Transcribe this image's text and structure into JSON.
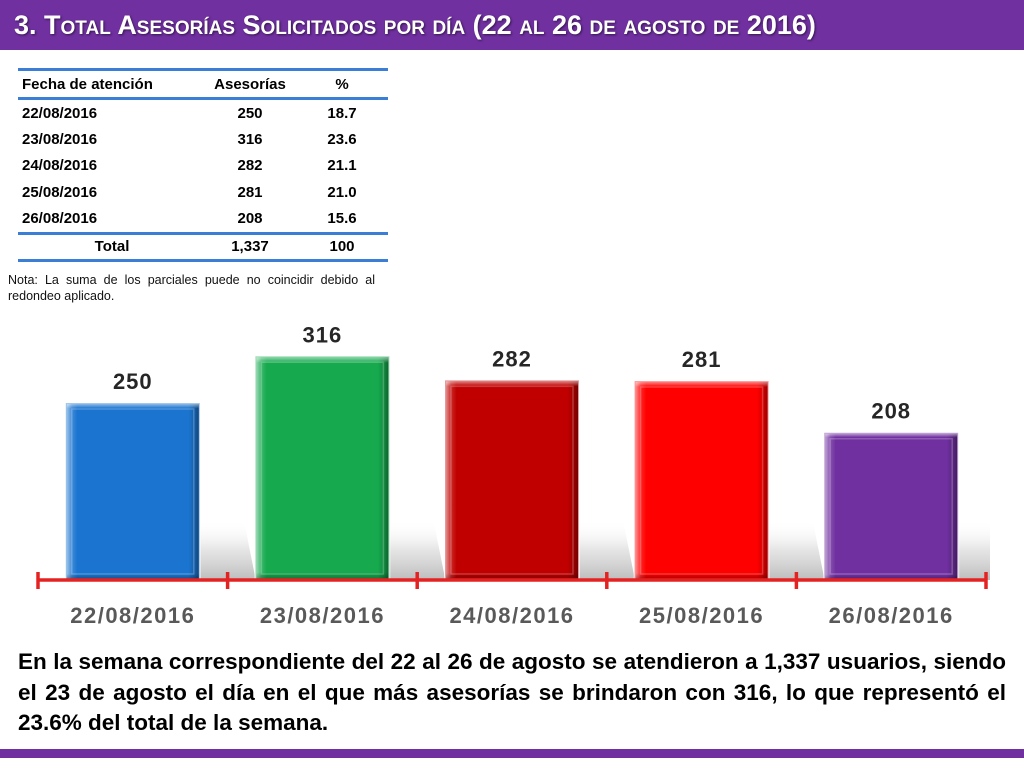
{
  "header": {
    "title": "3. Total Asesorías Solicitados por día (22 al 26 de agosto de 2016)"
  },
  "table": {
    "columns": {
      "date": "Fecha de atención",
      "count": "Asesorías",
      "percent": "%"
    },
    "rows": [
      {
        "date": "22/08/2016",
        "count": "250",
        "percent": "18.7"
      },
      {
        "date": "23/08/2016",
        "count": "316",
        "percent": "23.6"
      },
      {
        "date": "24/08/2016",
        "count": "282",
        "percent": "21.1"
      },
      {
        "date": "25/08/2016",
        "count": "281",
        "percent": "21.0"
      },
      {
        "date": "26/08/2016",
        "count": "208",
        "percent": "15.6"
      }
    ],
    "total": {
      "label": "Total",
      "count": "1,337",
      "percent": "100"
    }
  },
  "note": "Nota: La suma de los parciales puede no coincidir debido al redondeo aplicado.",
  "chart_data": {
    "type": "bar",
    "categories": [
      "22/08/2016",
      "23/08/2016",
      "24/08/2016",
      "25/08/2016",
      "26/08/2016"
    ],
    "values": [
      250,
      316,
      282,
      281,
      208
    ],
    "bar_colors": [
      "#1B75D0",
      "#16A94E",
      "#C00000",
      "#FF0000",
      "#7030A0"
    ],
    "axis_color": "#E52222",
    "data_labels": true,
    "legend": "none",
    "grid": false
  },
  "summary": "En la semana correspondiente del 22 al 26 de agosto se  atendieron a 1,337 usuarios, siendo el 23 de agosto el día en el que más asesorías se brindaron con 316, lo que representó el 23.6% del total de la semana.",
  "colors": {
    "accent": "#7030A0",
    "table_rule": "#3A7FD5"
  }
}
